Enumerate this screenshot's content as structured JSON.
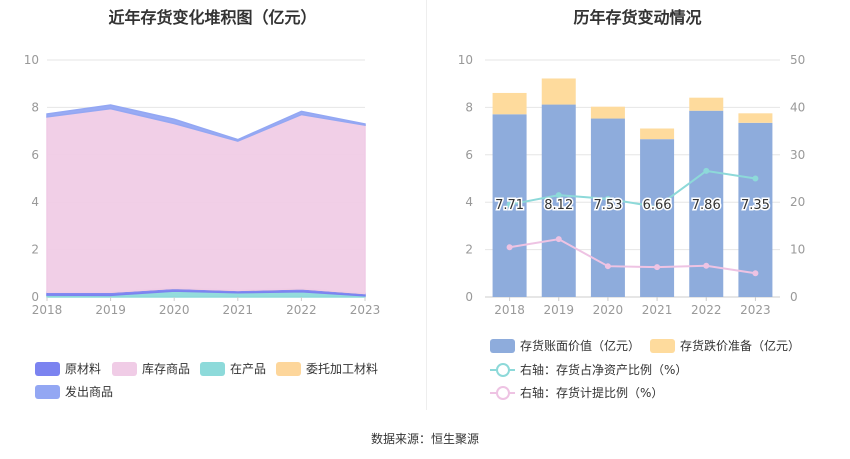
{
  "left_title": "近年存货变化堆积图（亿元）",
  "right_title": "历年存货变动情况",
  "source": "数据来源：恒生聚源",
  "chart_data": [
    {
      "type": "area",
      "title": "近年存货变化堆积图（亿元）",
      "x": [
        "2018",
        "2019",
        "2020",
        "2021",
        "2022",
        "2023"
      ],
      "ylim": [
        0,
        10
      ],
      "yticks": [
        "0",
        "2",
        "4",
        "6",
        "8",
        "10"
      ],
      "stacked": true,
      "legend_position": "bottom",
      "series": [
        {
          "name": "原材料",
          "color": "#7b83f0",
          "values": [
            0.12,
            0.13,
            0.12,
            0.1,
            0.13,
            0.1
          ]
        },
        {
          "name": "库存商品",
          "color": "#f0cce6",
          "values": [
            7.4,
            7.75,
            6.95,
            6.3,
            7.35,
            7.1
          ]
        },
        {
          "name": "在产品",
          "color": "#8ddada",
          "values": [
            0.08,
            0.07,
            0.25,
            0.18,
            0.22,
            0.05
          ]
        },
        {
          "name": "委托加工材料",
          "color": "#fdd69b",
          "values": [
            0.0,
            0.0,
            0.0,
            0.0,
            0.0,
            0.0
          ]
        },
        {
          "name": "发出商品",
          "color": "#93a7f3",
          "values": [
            0.12,
            0.15,
            0.18,
            0.06,
            0.13,
            0.05
          ]
        }
      ]
    },
    {
      "type": "bar",
      "title": "历年存货变动情况",
      "categories": [
        "2018",
        "2019",
        "2020",
        "2021",
        "2022",
        "2023"
      ],
      "ylim": [
        0,
        10
      ],
      "yticks": [
        "0",
        "2",
        "4",
        "6",
        "8",
        "10"
      ],
      "y2lim": [
        0,
        50
      ],
      "y2ticks": [
        "0",
        "10",
        "20",
        "30",
        "40",
        "50"
      ],
      "stacked": true,
      "legend_position": "bottom",
      "bar_series": [
        {
          "name": "存货账面价值（亿元）",
          "color": "#8eacdc",
          "values": [
            7.71,
            8.12,
            7.53,
            6.66,
            7.86,
            7.35
          ],
          "labels": [
            "7.71",
            "8.12",
            "7.53",
            "6.66",
            "7.86",
            "7.35"
          ]
        },
        {
          "name": "存货跌价准备（亿元）",
          "color": "#fedb9d",
          "values": [
            0.9,
            1.1,
            0.5,
            0.45,
            0.55,
            0.4
          ]
        }
      ],
      "line_series": [
        {
          "name": "右轴：存货占净资产比例（%）",
          "color": "#8dd9d9",
          "axis": "right",
          "values": [
            19.5,
            21.5,
            20.7,
            19.0,
            26.6,
            25.0
          ]
        },
        {
          "name": "右轴：存货计提比例（%）",
          "color": "#eec3e3",
          "axis": "right",
          "values": [
            10.5,
            12.2,
            6.5,
            6.3,
            6.6,
            5.0
          ]
        }
      ]
    }
  ]
}
